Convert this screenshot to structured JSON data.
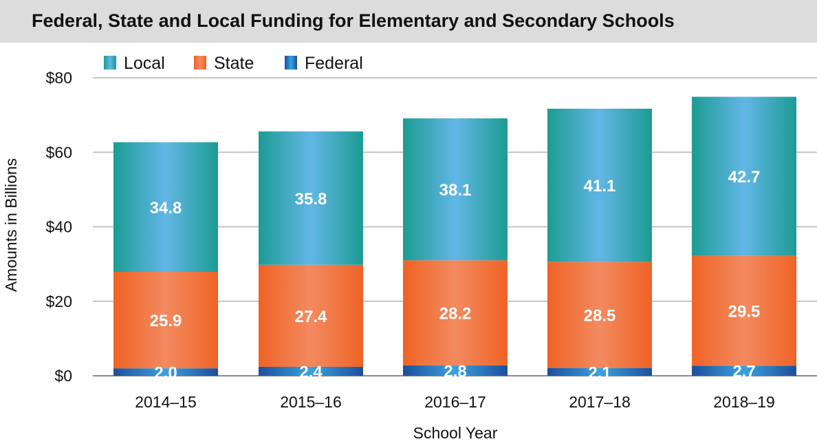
{
  "title": "Federal, State and Local Funding for Elementary and Secondary Schools",
  "chart_data": {
    "type": "bar",
    "stacked": true,
    "title": "Federal, State and Local Funding for Elementary and Secondary Schools",
    "xlabel": "School Year",
    "ylabel": "Amounts in Billions",
    "categories": [
      "2014–15",
      "2015–16",
      "2016–17",
      "2017–18",
      "2018–19"
    ],
    "series": [
      {
        "name": "Federal",
        "values": [
          2.0,
          2.4,
          2.8,
          2.1,
          2.7
        ],
        "labels": [
          "2.0",
          "2.4",
          "2.8",
          "2.1",
          "2.7"
        ],
        "color": "#1f5fa8"
      },
      {
        "name": "State",
        "values": [
          25.9,
          27.4,
          28.2,
          28.5,
          29.5
        ],
        "labels": [
          "25.9",
          "27.4",
          "28.2",
          "28.5",
          "29.5"
        ],
        "color": "#f06a2a"
      },
      {
        "name": "Local",
        "values": [
          34.8,
          35.8,
          38.1,
          41.1,
          42.7
        ],
        "labels": [
          "34.8",
          "35.8",
          "38.1",
          "41.1",
          "42.7"
        ],
        "color": "#2a9d9a"
      }
    ],
    "legend_order": [
      "Local",
      "State",
      "Federal"
    ],
    "legend_position": "top-left",
    "ylim": [
      0,
      80
    ],
    "yticks": [
      0,
      20,
      40,
      60,
      80
    ],
    "ytick_labels": [
      "$0",
      "$20",
      "$40",
      "$60",
      "$80"
    ],
    "grid": true
  }
}
